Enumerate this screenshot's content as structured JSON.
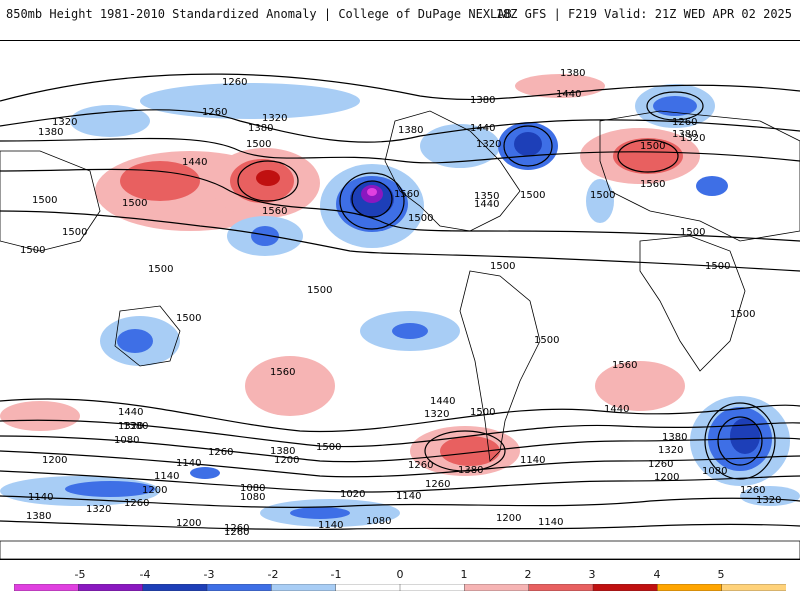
{
  "header": {
    "title": "850mb Height 1981-2010 Standardized Anomaly | College of DuPage NEXLAB",
    "run_info": "18Z GFS | F219 Valid: 21Z WED APR 02 2025"
  },
  "colorbar": {
    "labels": [
      "-5",
      "-4",
      "-3",
      "-2",
      "-1",
      "0",
      "1",
      "2",
      "3",
      "4",
      "5"
    ],
    "colors": [
      "#e040e0",
      "#8a18c0",
      "#1d3fb8",
      "#3e6fe6",
      "#a8cdf5",
      "#ffffff",
      "#ffffff",
      "#f6b4b4",
      "#e86060",
      "#c01010",
      "#ffa500",
      "#ffd27a"
    ]
  },
  "map": {
    "contour_labels": [
      "1260",
      "1320",
      "1380",
      "1260",
      "1320",
      "1380",
      "1440",
      "1500",
      "1560",
      "1500",
      "1500",
      "1500",
      "1500",
      "1560",
      "1500",
      "1380",
      "1440",
      "1320",
      "1380",
      "1440",
      "1350",
      "1500",
      "1380",
      "1440",
      "1500",
      "1260",
      "1320",
      "1380",
      "1560",
      "1500",
      "1500",
      "1500",
      "1500",
      "1500",
      "1500",
      "1500",
      "1560",
      "1500",
      "1560",
      "1500",
      "1440",
      "1380",
      "1320",
      "1260",
      "1200",
      "1440",
      "1320",
      "1500",
      "1440",
      "1380",
      "1500",
      "1260",
      "1260",
      "1380",
      "1200",
      "1140",
      "1080",
      "1140",
      "1080",
      "1260",
      "1200",
      "1260",
      "1140",
      "1080",
      "1140",
      "1200",
      "1260",
      "1320",
      "1380",
      "1320",
      "1020",
      "1140",
      "1080",
      "1140",
      "1200",
      "1140",
      "1200",
      "1260",
      "1380",
      "1080",
      "1320",
      "1260"
    ],
    "anomaly_scale": "standardized"
  }
}
